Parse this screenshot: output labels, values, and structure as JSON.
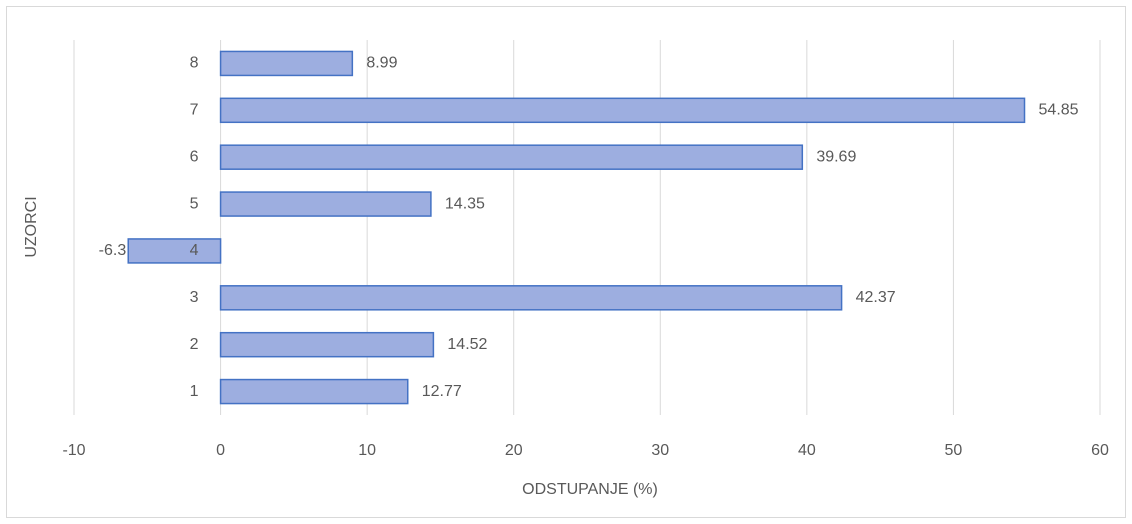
{
  "chart_data": {
    "type": "bar",
    "orientation": "horizontal",
    "xlabel": "ODSTUPANJE (%)",
    "ylabel": "UZORCI",
    "categories": [
      "1",
      "2",
      "3",
      "4",
      "5",
      "6",
      "7",
      "8"
    ],
    "values": [
      12.77,
      14.52,
      42.37,
      -6.3,
      14.35,
      39.69,
      54.85,
      8.99
    ],
    "color": "#9daee0",
    "edge_color": "#4472c4",
    "xlim": [
      -10,
      60
    ],
    "xticks": [
      -10,
      0,
      10,
      20,
      30,
      40,
      50,
      60
    ],
    "grid": true
  }
}
